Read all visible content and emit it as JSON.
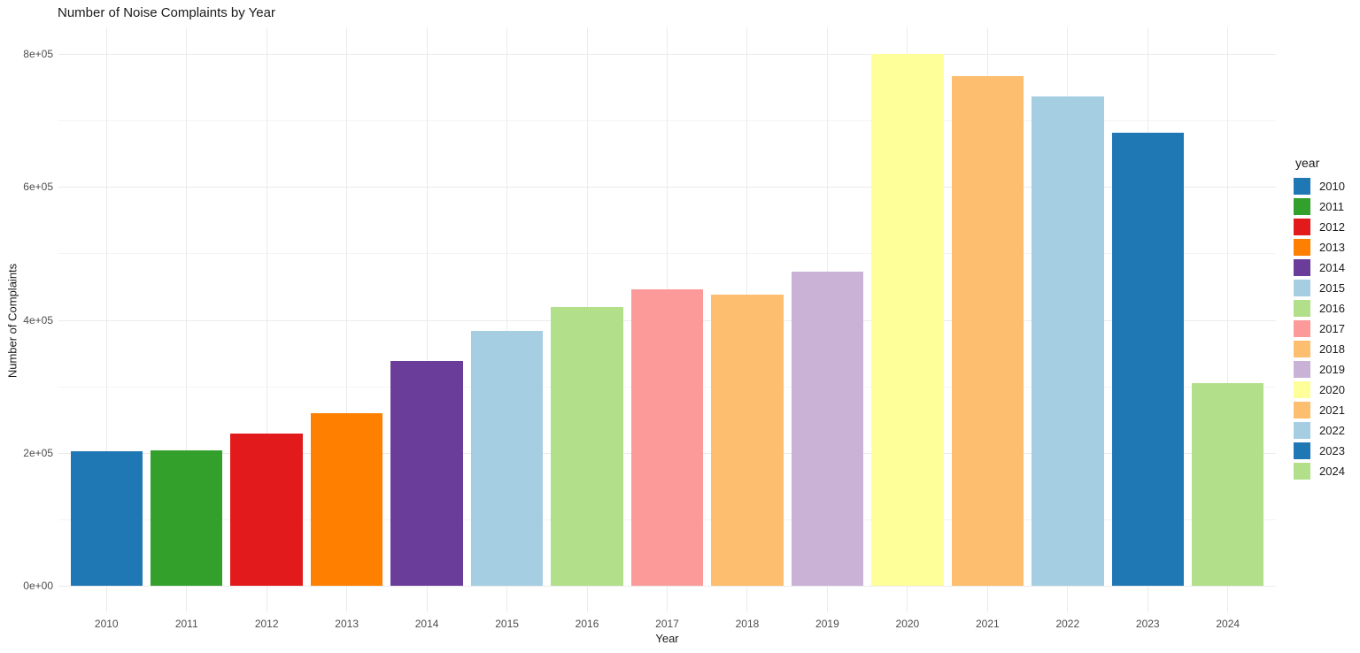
{
  "chart_data": {
    "type": "bar",
    "title": "Number of Noise Complaints by Year",
    "xlabel": "Year",
    "ylabel": "Number of Complaints",
    "legend_title": "year",
    "legend_position": "right",
    "grid": true,
    "ylim": [
      0,
      840000
    ],
    "y_major_ticks": [
      {
        "value": 0,
        "label": "0e+00"
      },
      {
        "value": 200000,
        "label": "2e+05"
      },
      {
        "value": 400000,
        "label": "4e+05"
      },
      {
        "value": 600000,
        "label": "6e+05"
      },
      {
        "value": 800000,
        "label": "8e+05"
      }
    ],
    "y_minor_ticks": [
      100000,
      300000,
      500000,
      700000
    ],
    "categories": [
      "2010",
      "2011",
      "2012",
      "2013",
      "2014",
      "2015",
      "2016",
      "2017",
      "2018",
      "2019",
      "2020",
      "2021",
      "2022",
      "2023",
      "2024"
    ],
    "values": [
      202000,
      204000,
      229000,
      260000,
      338000,
      384000,
      419000,
      446000,
      438000,
      473000,
      800000,
      767000,
      736000,
      682000,
      305000
    ],
    "colors": [
      "#1F78B4",
      "#33A02C",
      "#E31A1C",
      "#FF7F00",
      "#6A3D9A",
      "#A6CEE3",
      "#B2DF8A",
      "#FB9A99",
      "#FDBF6F",
      "#CAB2D6",
      "#FFFF99",
      "#FDBF6F",
      "#A6CEE3",
      "#1F78B4",
      "#B2DF8A"
    ],
    "legend_entries": [
      {
        "label": "2010",
        "color": "#1F78B4"
      },
      {
        "label": "2011",
        "color": "#33A02C"
      },
      {
        "label": "2012",
        "color": "#E31A1C"
      },
      {
        "label": "2013",
        "color": "#FF7F00"
      },
      {
        "label": "2014",
        "color": "#6A3D9A"
      },
      {
        "label": "2015",
        "color": "#A6CEE3"
      },
      {
        "label": "2016",
        "color": "#B2DF8A"
      },
      {
        "label": "2017",
        "color": "#FB9A99"
      },
      {
        "label": "2018",
        "color": "#FDBF6F"
      },
      {
        "label": "2019",
        "color": "#CAB2D6"
      },
      {
        "label": "2020",
        "color": "#FFFF99"
      },
      {
        "label": "2021",
        "color": "#FDBF6F"
      },
      {
        "label": "2022",
        "color": "#A6CEE3"
      },
      {
        "label": "2023",
        "color": "#1F78B4"
      },
      {
        "label": "2024",
        "color": "#B2DF8A"
      }
    ]
  },
  "theme_colors": {
    "background": "#FFFFFF",
    "grid_major": "#EBEBEB",
    "grid_minor": "#F4F4F4",
    "tick_label": "#4D4D4D",
    "text": "#1A1A1A"
  }
}
